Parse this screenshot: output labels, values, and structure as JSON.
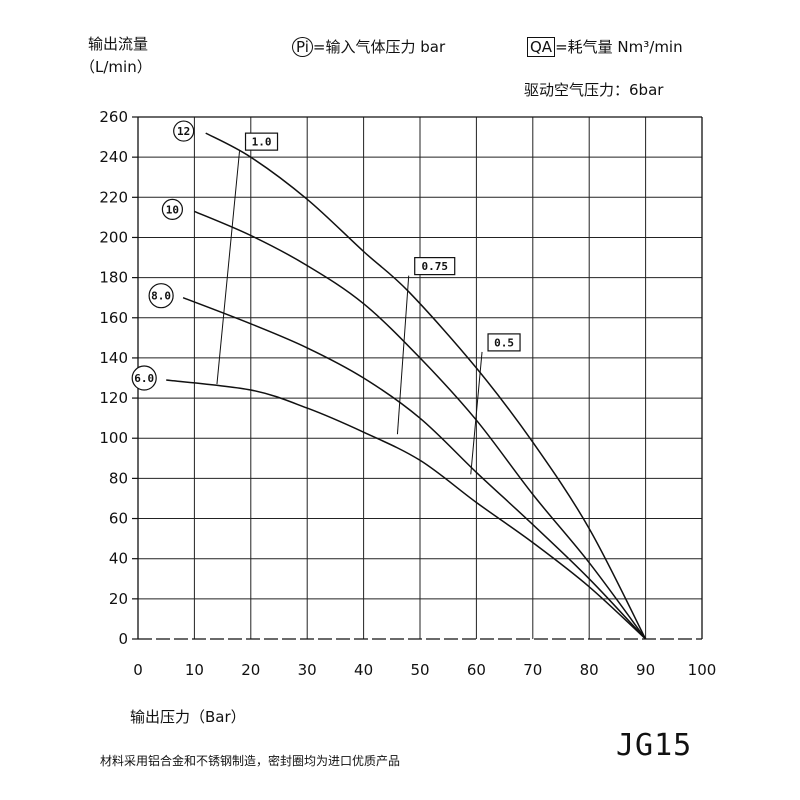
{
  "header": {
    "ylabel_line1": "输出流量",
    "ylabel_line2": "（L/min）",
    "pi_symbol": "Pi",
    "pi_text": "=输入气体压力 bar",
    "qa_symbol": "QA",
    "qa_text": "=耗气量 Nm³/min",
    "drive_pressure": "驱动空气压力：6bar"
  },
  "xlabel": "输出压力（Bar）",
  "footer": "材料采用铝合金和不锈钢制造，密封圈均为进口优质产品",
  "model": "JG15",
  "chart_data": {
    "type": "line",
    "xlim": [
      0,
      100
    ],
    "ylim": [
      0,
      260
    ],
    "x_ticks": [
      "0",
      "10",
      "20",
      "30",
      "40",
      "50",
      "60",
      "70",
      "80",
      "90",
      "100"
    ],
    "y_ticks": [
      "0",
      "20",
      "40",
      "60",
      "80",
      "100",
      "120",
      "140",
      "160",
      "180",
      "200",
      "220",
      "240",
      "260"
    ],
    "grid": true,
    "series": [
      {
        "name": "12",
        "points": [
          [
            12,
            252
          ],
          [
            20,
            240
          ],
          [
            30,
            219
          ],
          [
            40,
            193
          ],
          [
            48,
            173
          ],
          [
            60,
            135
          ],
          [
            70,
            98
          ],
          [
            80,
            55
          ],
          [
            90,
            0
          ]
        ]
      },
      {
        "name": "10",
        "points": [
          [
            10,
            213
          ],
          [
            20,
            201
          ],
          [
            30,
            186
          ],
          [
            40,
            167
          ],
          [
            50,
            140
          ],
          [
            60,
            109
          ],
          [
            70,
            72
          ],
          [
            80,
            38
          ],
          [
            90,
            0
          ]
        ]
      },
      {
        "name": "8.0",
        "points": [
          [
            8,
            170
          ],
          [
            20,
            157
          ],
          [
            30,
            145
          ],
          [
            40,
            130
          ],
          [
            50,
            110
          ],
          [
            60,
            83
          ],
          [
            70,
            57
          ],
          [
            80,
            30
          ],
          [
            90,
            0
          ]
        ]
      },
      {
        "name": "6.0",
        "points": [
          [
            5,
            129
          ],
          [
            20,
            124
          ],
          [
            30,
            115
          ],
          [
            40,
            103
          ],
          [
            50,
            89
          ],
          [
            60,
            68
          ],
          [
            70,
            48
          ],
          [
            80,
            26
          ],
          [
            90,
            0
          ]
        ]
      }
    ],
    "consumption_lines": [
      {
        "label": "1.0",
        "from": [
          14,
          127
        ],
        "to": [
          18,
          243
        ]
      },
      {
        "label": "0.75",
        "from": [
          46,
          102
        ],
        "to": [
          48,
          181
        ]
      },
      {
        "label": "0.5",
        "from": [
          59,
          82
        ],
        "to": [
          61,
          143
        ]
      }
    ]
  }
}
